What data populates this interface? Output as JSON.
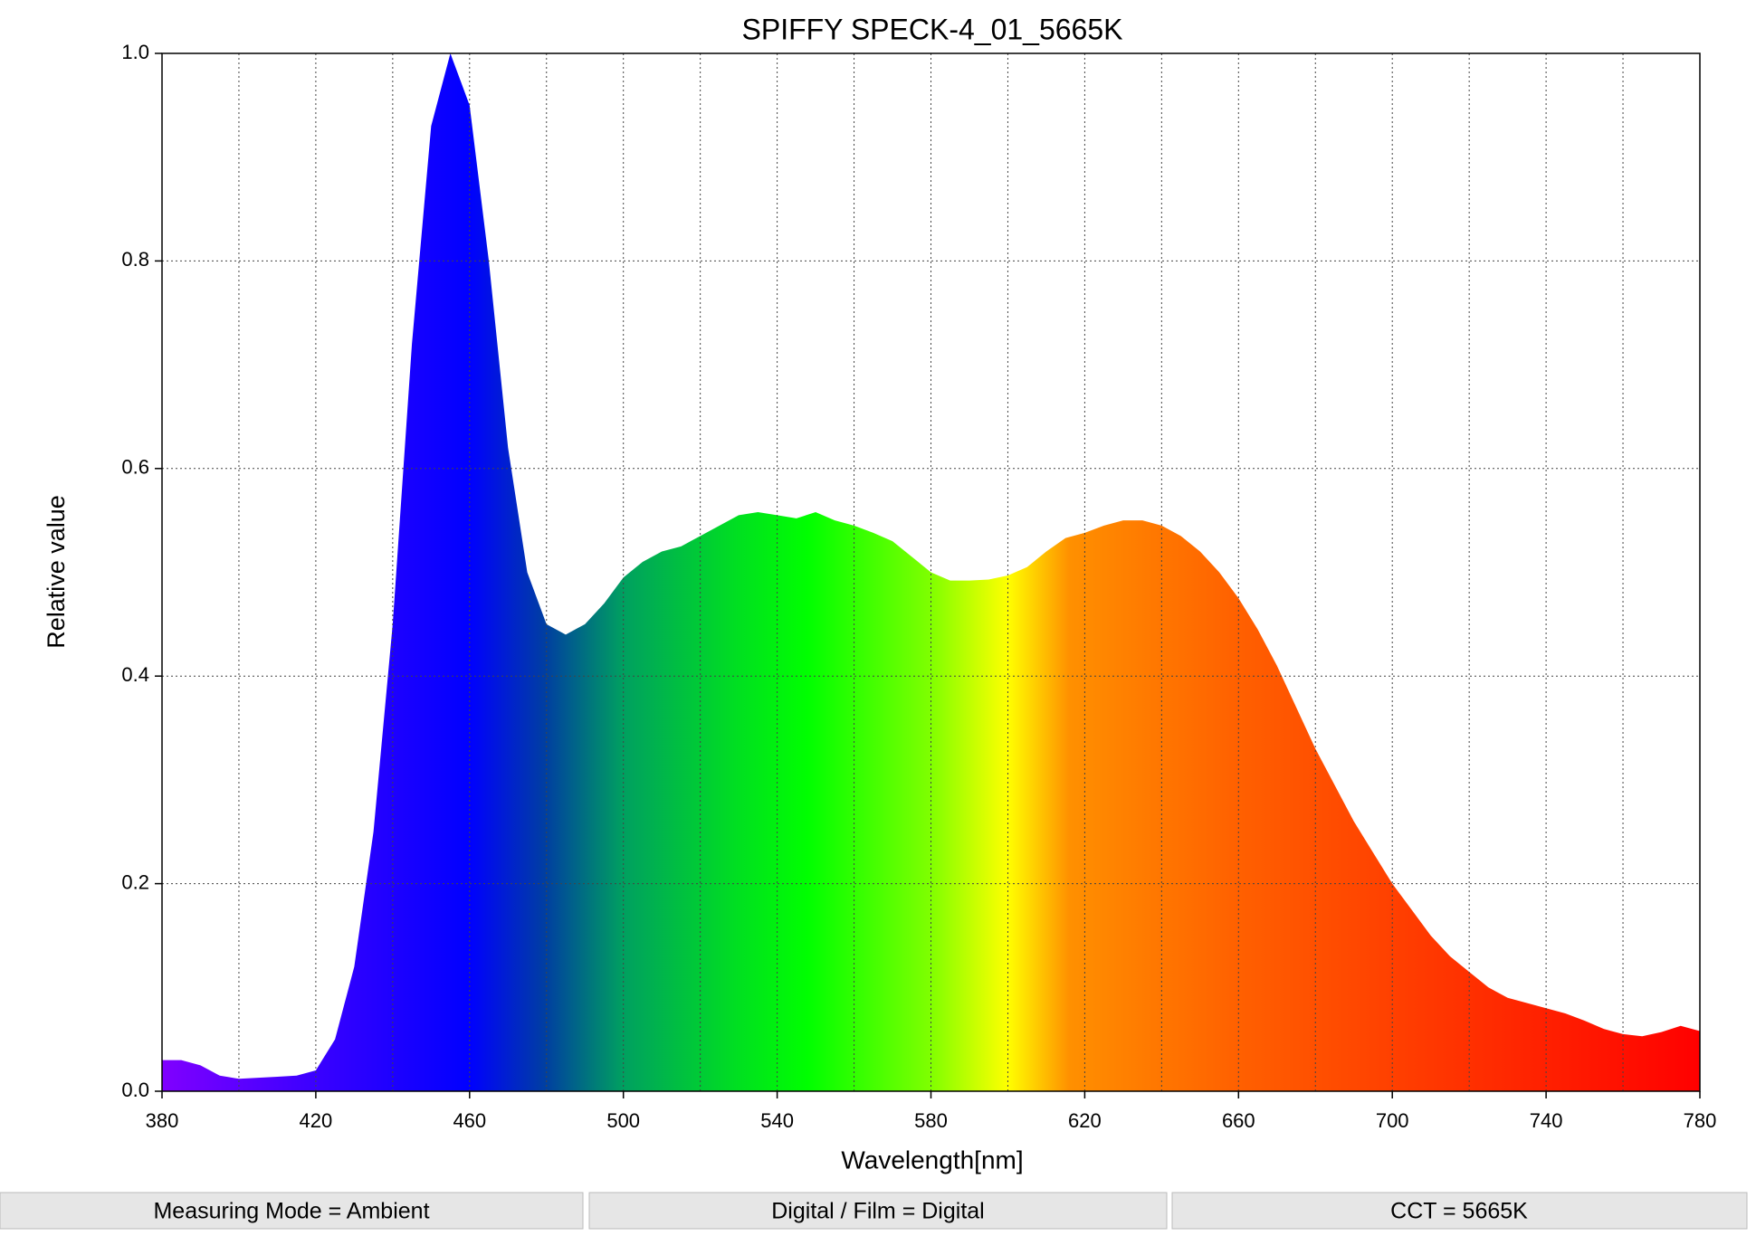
{
  "chart_data": {
    "type": "area",
    "title": "SPIFFY SPECK-4_01_5665K",
    "x_label": "Wavelength[nm]",
    "y_label": "Relative value",
    "x": [
      380,
      385,
      390,
      395,
      400,
      405,
      410,
      415,
      420,
      425,
      430,
      435,
      440,
      445,
      450,
      455,
      460,
      465,
      470,
      475,
      480,
      485,
      490,
      495,
      500,
      505,
      510,
      515,
      520,
      525,
      530,
      535,
      540,
      545,
      550,
      555,
      560,
      565,
      570,
      575,
      580,
      585,
      590,
      595,
      600,
      605,
      610,
      615,
      620,
      625,
      630,
      635,
      640,
      645,
      650,
      655,
      660,
      665,
      670,
      675,
      680,
      685,
      690,
      695,
      700,
      705,
      710,
      715,
      720,
      725,
      730,
      735,
      740,
      745,
      750,
      755,
      760,
      765,
      770,
      775,
      780
    ],
    "values": [
      0.03,
      0.03,
      0.025,
      0.015,
      0.012,
      0.013,
      0.014,
      0.015,
      0.02,
      0.05,
      0.12,
      0.25,
      0.45,
      0.72,
      0.93,
      1.0,
      0.95,
      0.8,
      0.62,
      0.5,
      0.45,
      0.44,
      0.45,
      0.47,
      0.495,
      0.51,
      0.52,
      0.525,
      0.535,
      0.545,
      0.555,
      0.558,
      0.555,
      0.552,
      0.558,
      0.55,
      0.545,
      0.538,
      0.53,
      0.515,
      0.5,
      0.492,
      0.492,
      0.493,
      0.497,
      0.505,
      0.52,
      0.533,
      0.538,
      0.545,
      0.55,
      0.55,
      0.545,
      0.535,
      0.52,
      0.5,
      0.475,
      0.445,
      0.41,
      0.37,
      0.33,
      0.295,
      0.26,
      0.23,
      0.2,
      0.175,
      0.15,
      0.13,
      0.115,
      0.1,
      0.09,
      0.085,
      0.08,
      0.075,
      0.068,
      0.06,
      0.055,
      0.053,
      0.057,
      0.063,
      0.058
    ],
    "xlim": [
      380,
      780
    ],
    "ylim": [
      0,
      1
    ],
    "xticks": [
      380,
      420,
      460,
      500,
      540,
      580,
      620,
      660,
      700,
      740,
      780
    ],
    "xgrid": [
      380,
      400,
      420,
      440,
      460,
      480,
      500,
      520,
      540,
      560,
      580,
      600,
      620,
      640,
      660,
      680,
      700,
      720,
      740,
      760,
      780
    ],
    "yticks": [
      {
        "value": 0,
        "label": "0.0"
      },
      0.2,
      0.4,
      0.6,
      0.8,
      {
        "value": 1,
        "label": "1.0"
      }
    ],
    "grid": true
  },
  "status_bar": [
    "Measuring Mode = Ambient",
    "Digital / Film = Digital",
    "CCT = 5665K"
  ]
}
